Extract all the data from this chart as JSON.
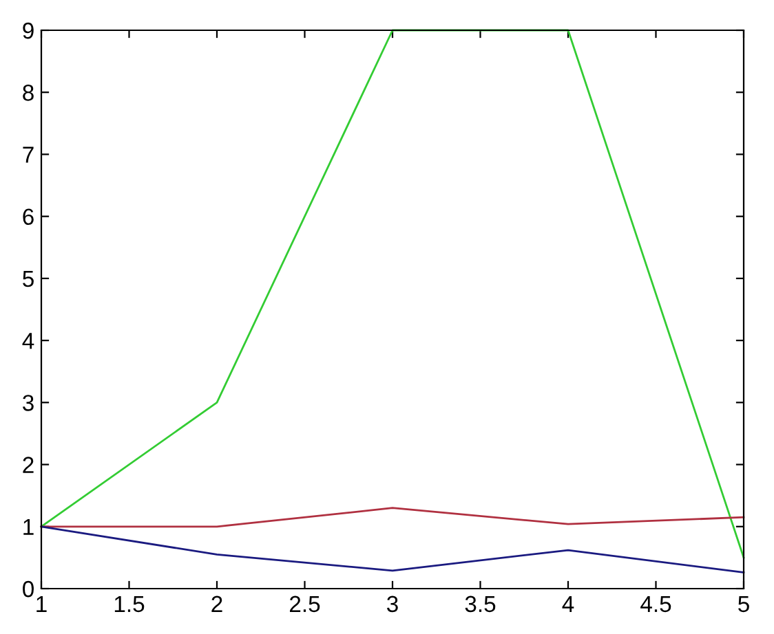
{
  "chart_data": {
    "type": "line",
    "x": [
      1,
      2,
      3,
      4,
      5
    ],
    "series": [
      {
        "color": "#33cc33",
        "values": [
          1,
          3,
          9,
          9,
          0.5
        ]
      },
      {
        "color": "#b03040",
        "values": [
          1,
          1,
          1.3,
          1.04,
          1.15
        ]
      },
      {
        "color": "#1a1a80",
        "values": [
          1,
          0.55,
          0.29,
          0.62,
          0.26
        ]
      }
    ],
    "xlim": [
      1,
      5
    ],
    "ylim": [
      0,
      9
    ],
    "xticks": [
      1,
      1.5,
      2,
      2.5,
      3,
      3.5,
      4,
      4.5,
      5
    ],
    "yticks": [
      0,
      1,
      2,
      3,
      4,
      5,
      6,
      7,
      8,
      9
    ],
    "grid": false,
    "marker": "none",
    "line_style": "solid"
  }
}
